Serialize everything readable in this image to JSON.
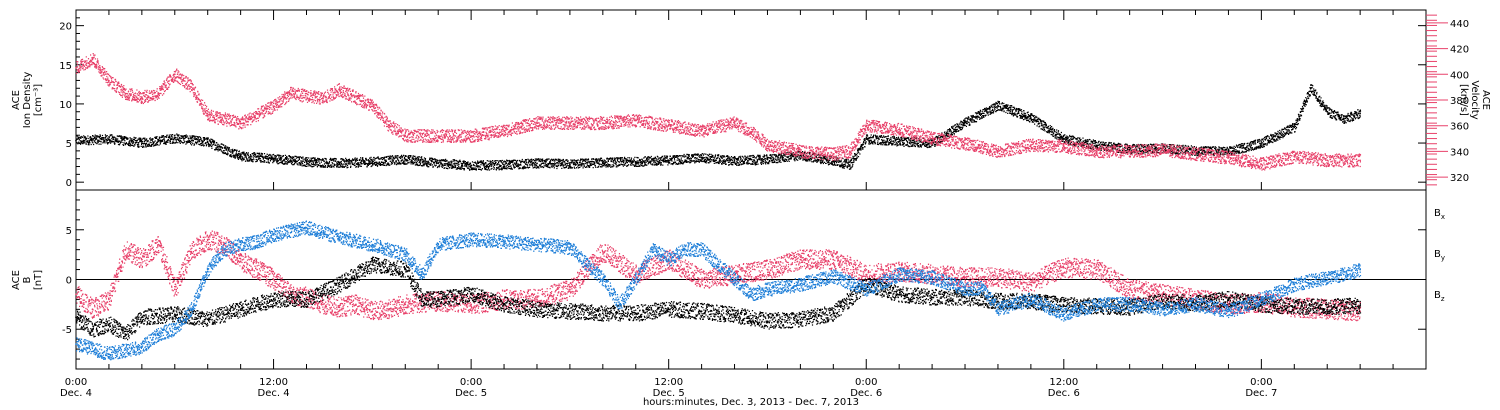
{
  "colors": {
    "black": "#000000",
    "red": "#e8416a",
    "blue": "#1f7fd8"
  },
  "chart_data": [
    {
      "type": "scatter",
      "panel": "top",
      "ylabel": "ACE\nIon Density\n[cm⁻³]",
      "ylim": [
        -1,
        22
      ],
      "yticks": [
        0,
        5,
        10,
        15,
        20
      ],
      "y2label": "ACE\nVelocity\n[km/s]",
      "y2lim": [
        310,
        450
      ],
      "y2ticks": [
        320,
        340,
        360,
        380,
        400,
        420,
        440
      ],
      "series": [
        {
          "name": "",
          "axis": "left",
          "color": "#000000",
          "points": [
            [
              0,
              5.3
            ],
            [
              2,
              5.5
            ],
            [
              4,
              5.0
            ],
            [
              6,
              5.6
            ],
            [
              8,
              5.1
            ],
            [
              10,
              3.3
            ],
            [
              12,
              3.0
            ],
            [
              14,
              2.6
            ],
            [
              16,
              2.4
            ],
            [
              18,
              2.6
            ],
            [
              20,
              2.9
            ],
            [
              22,
              2.4
            ],
            [
              24,
              2.1
            ],
            [
              26,
              2.2
            ],
            [
              28,
              2.4
            ],
            [
              30,
              2.3
            ],
            [
              32,
              2.5
            ],
            [
              34,
              2.6
            ],
            [
              36,
              2.8
            ],
            [
              38,
              3.1
            ],
            [
              40,
              2.7
            ],
            [
              42,
              2.9
            ],
            [
              44,
              3.4
            ],
            [
              46,
              2.7
            ],
            [
              47,
              2.2
            ],
            [
              48,
              5.5
            ],
            [
              50,
              5.2
            ],
            [
              52,
              5.0
            ],
            [
              54,
              7.6
            ],
            [
              56,
              9.8
            ],
            [
              58,
              8.2
            ],
            [
              60,
              5.5
            ],
            [
              62,
              4.7
            ],
            [
              64,
              4.2
            ],
            [
              66,
              4.3
            ],
            [
              68,
              4.0
            ],
            [
              70,
              3.9
            ],
            [
              72,
              5.0
            ],
            [
              74,
              7.0
            ],
            [
              75,
              12.0
            ],
            [
              76,
              9.0
            ],
            [
              77,
              8.0
            ],
            [
              78,
              8.8
            ]
          ]
        },
        {
          "name": "",
          "axis": "right",
          "color": "#e8416a",
          "points": [
            [
              0,
              405
            ],
            [
              1,
              412
            ],
            [
              2,
              395
            ],
            [
              3,
              385
            ],
            [
              4,
              382
            ],
            [
              5,
              385
            ],
            [
              6,
              400
            ],
            [
              7,
              390
            ],
            [
              8,
              368
            ],
            [
              10,
              362
            ],
            [
              12,
              375
            ],
            [
              13,
              385
            ],
            [
              15,
              381
            ],
            [
              16,
              388
            ],
            [
              18,
              375
            ],
            [
              19,
              360
            ],
            [
              20,
              352
            ],
            [
              22,
              352
            ],
            [
              24,
              352
            ],
            [
              26,
              356
            ],
            [
              28,
              362
            ],
            [
              30,
              362
            ],
            [
              32,
              362
            ],
            [
              34,
              364
            ],
            [
              36,
              360
            ],
            [
              38,
              356
            ],
            [
              40,
              362
            ],
            [
              41,
              355
            ],
            [
              42,
              345
            ],
            [
              44,
              340
            ],
            [
              46,
              338
            ],
            [
              47,
              340
            ],
            [
              48,
              360
            ],
            [
              50,
              357
            ],
            [
              52,
              350
            ],
            [
              54,
              346
            ],
            [
              56,
              340
            ],
            [
              58,
              345
            ],
            [
              60,
              344
            ],
            [
              62,
              340
            ],
            [
              64,
              340
            ],
            [
              66,
              341
            ],
            [
              68,
              338
            ],
            [
              70,
              335
            ],
            [
              72,
              330
            ],
            [
              74,
              336
            ],
            [
              76,
              333
            ],
            [
              78,
              333
            ]
          ]
        }
      ]
    },
    {
      "type": "scatter",
      "panel": "bottom",
      "ylabel": "ACE\nB\n[nT]",
      "ylim": [
        -9,
        9
      ],
      "yticks": [
        -5,
        0,
        5
      ],
      "zero_line": true,
      "xlabel": "hours:minutes, Dec.  3, 2013 - Dec.  7, 2013",
      "xlim": [
        0,
        82
      ],
      "xticks": [
        {
          "x": 0,
          "time": "0:00",
          "day": "Dec. 4"
        },
        {
          "x": 12,
          "time": "12:00",
          "day": "Dec. 4"
        },
        {
          "x": 24,
          "time": "0:00",
          "day": "Dec. 5"
        },
        {
          "x": 36,
          "time": "12:00",
          "day": "Dec. 5"
        },
        {
          "x": 48,
          "time": "0:00",
          "day": "Dec. 6"
        },
        {
          "x": 60,
          "time": "12:00",
          "day": "Dec. 6"
        },
        {
          "x": 72,
          "time": "0:00",
          "day": "Dec. 7"
        }
      ],
      "series": [
        {
          "name": "Bx",
          "color": "#000000",
          "points": [
            [
              0,
              -3.8
            ],
            [
              1,
              -5.0
            ],
            [
              2,
              -4.5
            ],
            [
              3,
              -5.5
            ],
            [
              4,
              -3.8
            ],
            [
              6,
              -3.5
            ],
            [
              8,
              -4.0
            ],
            [
              10,
              -3.0
            ],
            [
              12,
              -2.0
            ],
            [
              14,
              -2.0
            ],
            [
              16,
              -0.5
            ],
            [
              18,
              1.5
            ],
            [
              20,
              1.0
            ],
            [
              21,
              -2.0
            ],
            [
              22,
              -2.0
            ],
            [
              24,
              -1.5
            ],
            [
              26,
              -2.5
            ],
            [
              28,
              -3.0
            ],
            [
              30,
              -3.2
            ],
            [
              32,
              -3.4
            ],
            [
              34,
              -3.4
            ],
            [
              36,
              -3.0
            ],
            [
              38,
              -3.2
            ],
            [
              40,
              -3.6
            ],
            [
              42,
              -4.2
            ],
            [
              44,
              -4.0
            ],
            [
              46,
              -3.4
            ],
            [
              48,
              -0.5
            ],
            [
              50,
              -1.5
            ],
            [
              52,
              -1.8
            ],
            [
              54,
              -1.8
            ],
            [
              56,
              -2.2
            ],
            [
              58,
              -2.2
            ],
            [
              60,
              -2.6
            ],
            [
              62,
              -2.7
            ],
            [
              64,
              -2.8
            ],
            [
              66,
              -2.2
            ],
            [
              68,
              -2.4
            ],
            [
              70,
              -2.0
            ],
            [
              72,
              -2.5
            ],
            [
              74,
              -2.7
            ],
            [
              76,
              -2.8
            ],
            [
              78,
              -2.6
            ]
          ]
        },
        {
          "name": "By",
          "color": "#1f7fd8",
          "points": [
            [
              0,
              -6.5
            ],
            [
              2,
              -7.5
            ],
            [
              4,
              -6.8
            ],
            [
              5,
              -5.5
            ],
            [
              6,
              -5.0
            ],
            [
              7,
              -3.0
            ],
            [
              8,
              1.0
            ],
            [
              9,
              3.0
            ],
            [
              10,
              3.5
            ],
            [
              11,
              3.8
            ],
            [
              12,
              4.5
            ],
            [
              14,
              5.2
            ],
            [
              16,
              4.2
            ],
            [
              18,
              3.5
            ],
            [
              20,
              2.5
            ],
            [
              21,
              0.5
            ],
            [
              22,
              3.5
            ],
            [
              24,
              4.0
            ],
            [
              26,
              3.8
            ],
            [
              28,
              3.5
            ],
            [
              30,
              3.2
            ],
            [
              31,
              1.5
            ],
            [
              32,
              0
            ],
            [
              33,
              -2.5
            ],
            [
              34,
              0
            ],
            [
              35,
              3.0
            ],
            [
              36,
              2.0
            ],
            [
              37,
              3.0
            ],
            [
              38,
              3.0
            ],
            [
              39,
              1.5
            ],
            [
              40,
              0
            ],
            [
              41,
              -1.5
            ],
            [
              42,
              -1.0
            ],
            [
              44,
              -0.5
            ],
            [
              46,
              0.3
            ],
            [
              48,
              -1.0
            ],
            [
              50,
              0.5
            ],
            [
              52,
              0.2
            ],
            [
              54,
              -1.0
            ],
            [
              55,
              -0.8
            ],
            [
              56,
              -3.0
            ],
            [
              58,
              -2.0
            ],
            [
              60,
              -3.5
            ],
            [
              62,
              -2.5
            ],
            [
              64,
              -2.5
            ],
            [
              66,
              -3.0
            ],
            [
              68,
              -2.5
            ],
            [
              70,
              -3.2
            ],
            [
              72,
              -2.0
            ],
            [
              74,
              -0.5
            ],
            [
              76,
              0.2
            ],
            [
              77,
              0.5
            ],
            [
              78,
              1.0
            ]
          ]
        },
        {
          "name": "Bz",
          "color": "#e8416a",
          "points": [
            [
              0,
              -1.5
            ],
            [
              1,
              -3.0
            ],
            [
              2,
              -2.0
            ],
            [
              3,
              3.0
            ],
            [
              4,
              2.0
            ],
            [
              5,
              3.5
            ],
            [
              6,
              -1.0
            ],
            [
              7,
              2.8
            ],
            [
              8,
              4.0
            ],
            [
              9,
              3.5
            ],
            [
              10,
              1.8
            ],
            [
              11,
              1.0
            ],
            [
              12,
              0
            ],
            [
              13,
              -1.5
            ],
            [
              14,
              -1.8
            ],
            [
              15,
              -2.5
            ],
            [
              16,
              -2.8
            ],
            [
              17,
              -2.5
            ],
            [
              18,
              -3.2
            ],
            [
              19,
              -3.0
            ],
            [
              20,
              -2.5
            ],
            [
              22,
              -2.2
            ],
            [
              24,
              -2.5
            ],
            [
              26,
              -2.0
            ],
            [
              28,
              -2.0
            ],
            [
              30,
              -1.0
            ],
            [
              32,
              2.8
            ],
            [
              34,
              0.5
            ],
            [
              36,
              2.0
            ],
            [
              38,
              0
            ],
            [
              40,
              0.5
            ],
            [
              42,
              1.0
            ],
            [
              44,
              2.0
            ],
            [
              46,
              2.0
            ],
            [
              48,
              0.5
            ],
            [
              50,
              0.8
            ],
            [
              52,
              0.5
            ],
            [
              54,
              0.2
            ],
            [
              56,
              0.2
            ],
            [
              58,
              -0.3
            ],
            [
              60,
              1.2
            ],
            [
              62,
              1.0
            ],
            [
              63,
              0
            ],
            [
              64,
              -1.0
            ],
            [
              66,
              -1.5
            ],
            [
              68,
              -2.0
            ],
            [
              70,
              -2.5
            ],
            [
              72,
              -2.3
            ],
            [
              74,
              -2.8
            ],
            [
              76,
              -3.0
            ],
            [
              78,
              -3.2
            ]
          ]
        }
      ],
      "legend_placement": "right"
    }
  ]
}
